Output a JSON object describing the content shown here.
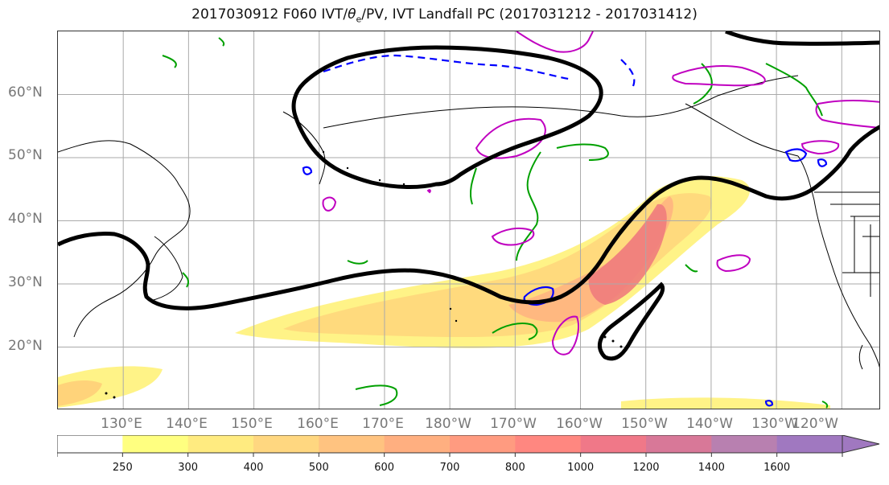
{
  "title_parts": {
    "before": "2017030912 F060 IVT/",
    "theta": "θ",
    "sub": "e",
    "after": "/PV, IVT Landfall PC (2017031212 - 2017031412)"
  },
  "lat_labels": [
    "60°N",
    "50°N",
    "40°N",
    "30°N",
    "20°N"
  ],
  "lat_values": [
    60,
    50,
    40,
    30,
    20
  ],
  "lon_labels": [
    "130°E",
    "140°E",
    "150°E",
    "160°E",
    "170°E",
    "180°W",
    "170°W",
    "160°W",
    "150°W",
    "140°W",
    "130°W",
    "120°W"
  ],
  "lon_values": [
    130,
    140,
    150,
    160,
    170,
    180,
    190,
    200,
    210,
    220,
    230,
    240
  ],
  "map_extent": {
    "lon_min": 120,
    "lon_max": 246,
    "lat_min": 10,
    "lat_max": 70
  },
  "colorbar": {
    "levels": [
      "250",
      "300",
      "400",
      "500",
      "600",
      "700",
      "800",
      "1000",
      "1200",
      "1400",
      "1600"
    ],
    "colors": [
      "#ffffff",
      "#ffff80",
      "#ffeb80",
      "#ffd780",
      "#ffc380",
      "#ffaf80",
      "#ff9b80",
      "#ff8780",
      "#f07888",
      "#d87898",
      "#b880b0",
      "#a078c0"
    ],
    "extend": "max"
  },
  "colors": {
    "ivt_low": "#fff27a",
    "ivt_mid": "#ffd37a",
    "ivt_high": "#ff9f80",
    "ivt_core": "#f07c7c",
    "pc_contour": "#000000",
    "theta_e_positive": "#00a000",
    "theta_e_negative": "#0000ff",
    "pv": "#c000c0",
    "grid": "#aaaaaa",
    "coast": "#000000",
    "axis_label": "#777777"
  }
}
